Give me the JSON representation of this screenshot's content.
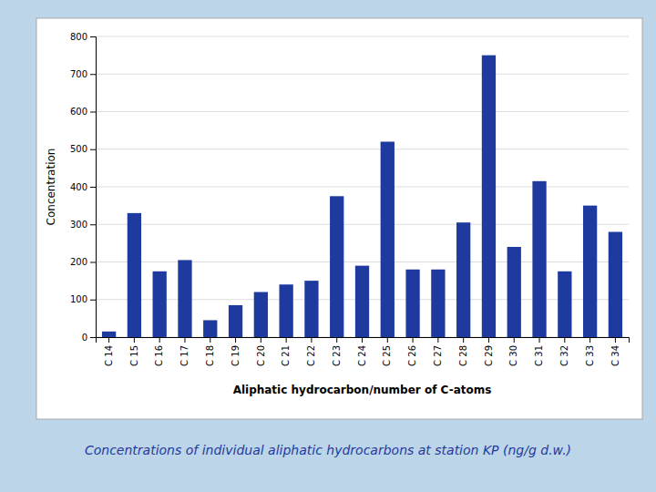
{
  "chart_data": {
    "type": "bar",
    "title": "Concentrations of individual aliphatic hydrocarbons at station KP (ng/g d.w.)",
    "xlabel": "Aliphatic hydrocarbon/number of C-atoms",
    "ylabel": "Concentration",
    "categories": [
      "C 14",
      "C 15",
      "C 16",
      "C 17",
      "C 18",
      "C 19",
      "C 20",
      "C 21",
      "C 22",
      "C 23",
      "C 24",
      "C 25",
      "C 26",
      "C 27",
      "C 28",
      "C 29",
      "C 30",
      "C 31",
      "C 32",
      "C 33",
      "C 34"
    ],
    "values": [
      15,
      330,
      175,
      205,
      45,
      85,
      120,
      140,
      150,
      375,
      190,
      520,
      180,
      180,
      305,
      750,
      240,
      415,
      175,
      350,
      280
    ],
    "color": "#1F3A9F",
    "ylim": [
      0,
      800
    ],
    "yticks": [
      0,
      100,
      200,
      300,
      400,
      500,
      600,
      700,
      800
    ],
    "grid": true
  }
}
